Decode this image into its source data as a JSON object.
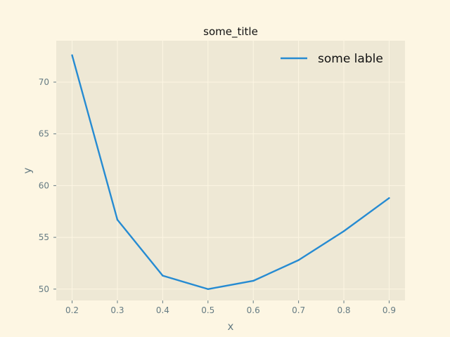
{
  "chart_data": {
    "type": "line",
    "title": "some_title",
    "xlabel": "x",
    "ylabel": "y",
    "x": [
      0.2,
      0.3,
      0.4,
      0.5,
      0.6,
      0.7,
      0.8,
      0.9
    ],
    "series": [
      {
        "name": "some lable",
        "values": [
          72.6,
          56.7,
          51.3,
          50.0,
          50.8,
          52.8,
          55.6,
          58.8
        ],
        "color": "#268bd2"
      }
    ],
    "xlim": [
      0.165,
      0.935
    ],
    "ylim": [
      48.9,
      74.0
    ],
    "xticks": [
      "0.2",
      "0.3",
      "0.4",
      "0.5",
      "0.6",
      "0.7",
      "0.8",
      "0.9"
    ],
    "yticks": [
      "50",
      "55",
      "60",
      "65",
      "70"
    ],
    "grid": true,
    "legend_position": "top-right",
    "colors": {
      "figure_bg": "#fdf6e3",
      "axes_bg": "#eee8d5",
      "grid": "#fdf6e3",
      "text": "#657b83"
    }
  }
}
